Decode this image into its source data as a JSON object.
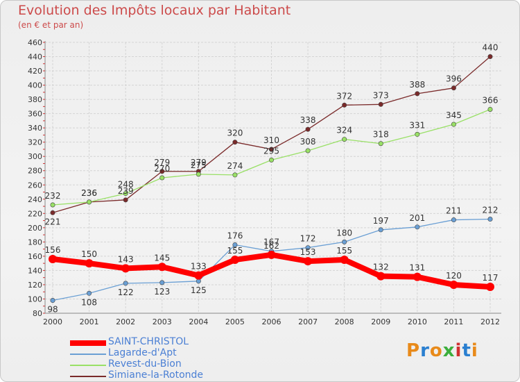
{
  "title": "Evolution des Impôts locaux par Habitant",
  "subtitle": "(en € et par an)",
  "logo_text": "Proxiti",
  "chart_data": {
    "type": "line",
    "title": "Evolution des Impôts locaux par Habitant",
    "subtitle": "(en € et par an)",
    "categories": [
      "2000",
      "2001",
      "2002",
      "2003",
      "2004",
      "2005",
      "2006",
      "2007",
      "2008",
      "2009",
      "2010",
      "2011",
      "2012"
    ],
    "ylim": [
      80,
      460
    ],
    "yticks": [
      80,
      100,
      120,
      140,
      160,
      180,
      200,
      220,
      240,
      260,
      280,
      300,
      320,
      340,
      360,
      380,
      400,
      420,
      440,
      460
    ],
    "grid": true,
    "legend_position": "bottom-left",
    "series": [
      {
        "name": "SAINT-CHRISTOL",
        "color": "#ff0000",
        "values": [
          156,
          150,
          143,
          145,
          133,
          155,
          162,
          153,
          155,
          132,
          131,
          120,
          117
        ]
      },
      {
        "name": "Lagarde-d'Apt",
        "color": "#6a9fd4",
        "values": [
          98,
          108,
          122,
          123,
          125,
          176,
          167,
          172,
          180,
          197,
          201,
          211,
          212
        ]
      },
      {
        "name": "Revest-du-Bion",
        "color": "#99e066",
        "values": [
          232,
          236,
          248,
          270,
          275,
          274,
          295,
          308,
          324,
          318,
          331,
          345,
          366
        ]
      },
      {
        "name": "Simiane-la-Rotonde",
        "color": "#7a2a2a",
        "values": [
          221,
          236,
          239,
          279,
          279,
          320,
          310,
          338,
          372,
          373,
          388,
          396,
          440
        ]
      }
    ]
  }
}
